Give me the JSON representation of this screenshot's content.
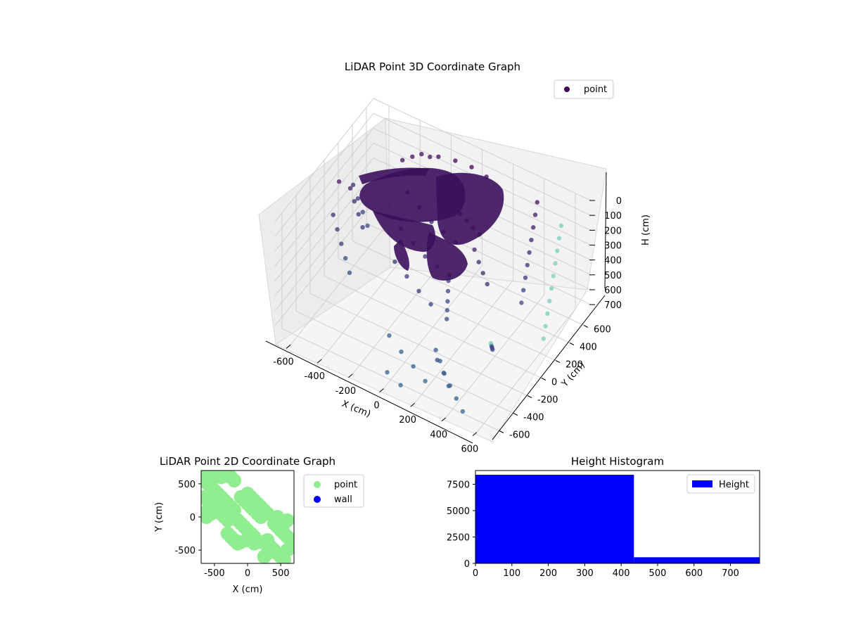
{
  "chart_data": [
    {
      "type": "scatter",
      "projection": "3d",
      "title": "LiDAR Point 3D Coordinate Graph",
      "xlabel": "X (cm)",
      "ylabel": "Y (cm)",
      "zlabel": "H (cm)",
      "xlim": [
        -700,
        700
      ],
      "ylim": [
        -700,
        700
      ],
      "zlim": [
        0,
        780
      ],
      "zaxis_inverted": true,
      "x_ticks": [
        "-600",
        "-400",
        "-200",
        "0",
        "200",
        "400",
        "600"
      ],
      "y_ticks": [
        "-600",
        "-400",
        "-200",
        "0",
        "200",
        "400",
        "600"
      ],
      "z_ticks": [
        "0",
        "100",
        "200",
        "300",
        "400",
        "500",
        "600",
        "700"
      ],
      "legend": {
        "entries": [
          "point"
        ],
        "placement": "top-right"
      },
      "colormap": "viridis (by height)",
      "grid": true,
      "series": [
        {
          "name": "point",
          "note_points": "approximate sample of the dense cloud",
          "points": [
            [
              -650,
              100,
              180
            ],
            [
              -600,
              150,
              230
            ],
            [
              -560,
              120,
              280
            ],
            [
              -520,
              90,
              330
            ],
            [
              -480,
              60,
              380
            ],
            [
              -620,
              -50,
              300
            ],
            [
              -580,
              -80,
              360
            ],
            [
              -540,
              -110,
              420
            ],
            [
              -500,
              -140,
              480
            ],
            [
              -460,
              -170,
              540
            ],
            [
              -650,
              300,
              320
            ],
            [
              -610,
              280,
              380
            ],
            [
              -570,
              260,
              440
            ],
            [
              -530,
              240,
              500
            ],
            [
              -300,
              500,
              60
            ],
            [
              -200,
              520,
              40
            ],
            [
              -100,
              540,
              30
            ],
            [
              0,
              550,
              30
            ],
            [
              100,
              540,
              40
            ],
            [
              -400,
              450,
              120
            ],
            [
              -350,
              480,
              90
            ],
            [
              -250,
              510,
              60
            ],
            [
              -300,
              300,
              200
            ],
            [
              -200,
              250,
              220
            ],
            [
              -100,
              200,
              240
            ],
            [
              0,
              150,
              230
            ],
            [
              100,
              100,
              220
            ],
            [
              -250,
              100,
              300
            ],
            [
              -150,
              50,
              320
            ],
            [
              -50,
              0,
              330
            ],
            [
              50,
              -50,
              320
            ],
            [
              150,
              -100,
              300
            ],
            [
              -200,
              -100,
              380
            ],
            [
              -100,
              -150,
              400
            ],
            [
              0,
              -200,
              420
            ],
            [
              100,
              -250,
              430
            ],
            [
              0,
              300,
              150
            ],
            [
              50,
              280,
              160
            ],
            [
              100,
              260,
              170
            ],
            [
              150,
              240,
              180
            ],
            [
              200,
              220,
              190
            ],
            [
              100,
              0,
              420
            ],
            [
              120,
              -50,
              450
            ],
            [
              140,
              -100,
              480
            ],
            [
              160,
              -150,
              500
            ],
            [
              180,
              -200,
              520
            ],
            [
              200,
              150,
              250
            ],
            [
              250,
              100,
              280
            ],
            [
              300,
              50,
              300
            ],
            [
              350,
              0,
              320
            ],
            [
              600,
              -500,
              300
            ],
            [
              580,
              -450,
              350
            ],
            [
              560,
              -400,
              400
            ],
            [
              540,
              -350,
              450
            ],
            [
              520,
              -300,
              500
            ],
            [
              600,
              500,
              100
            ],
            [
              610,
              450,
              150
            ],
            [
              620,
              400,
              200
            ],
            [
              630,
              350,
              250
            ],
            [
              640,
              300,
              300
            ],
            [
              650,
              250,
              350
            ],
            [
              660,
              200,
              400
            ],
            [
              670,
              150,
              450
            ],
            [
              680,
              100,
              500
            ],
            [
              690,
              50,
              550
            ],
            [
              400,
              600,
              100
            ],
            [
              410,
              550,
              150
            ],
            [
              420,
              500,
              200
            ],
            [
              430,
              450,
              250
            ],
            [
              440,
              400,
              300
            ],
            [
              450,
              350,
              350
            ],
            [
              460,
              300,
              400
            ],
            [
              470,
              250,
              450
            ],
            [
              480,
              200,
              500
            ],
            [
              300,
              -600,
              500
            ],
            [
              350,
              -620,
              550
            ],
            [
              400,
              -640,
              600
            ],
            [
              450,
              -660,
              650
            ],
            [
              500,
              -680,
              700
            ],
            [
              200,
              -400,
              600
            ],
            [
              250,
              -450,
              620
            ],
            [
              300,
              -500,
              650
            ],
            [
              350,
              -550,
              680
            ],
            [
              -100,
              -400,
              650
            ],
            [
              0,
              -450,
              680
            ],
            [
              100,
              -500,
              700
            ],
            [
              200,
              -550,
              720
            ],
            [
              0,
              -650,
              700
            ],
            [
              100,
              -680,
              720
            ]
          ]
        }
      ]
    },
    {
      "type": "scatter",
      "title": "LiDAR Point 2D Coordinate Graph",
      "xlabel": "X (cm)",
      "ylabel": "Y (cm)",
      "xlim": [
        -700,
        700
      ],
      "ylim": [
        -700,
        700
      ],
      "x_ticks": [
        "-500",
        "0",
        "500"
      ],
      "y_ticks": [
        "-500",
        "0",
        "500"
      ],
      "legend": {
        "entries": [
          "point",
          "wall"
        ],
        "placement": "outside-right"
      },
      "grid": false,
      "series": [
        {
          "name": "point",
          "color": "#90ee90",
          "note_points": "approximate sample of the dense cloud",
          "points": [
            [
              -650,
              650
            ],
            [
              -600,
              620
            ],
            [
              -550,
              650
            ],
            [
              -500,
              600
            ],
            [
              -450,
              650
            ],
            [
              -400,
              600
            ],
            [
              -350,
              650
            ],
            [
              -300,
              620
            ],
            [
              -250,
              600
            ],
            [
              -200,
              550
            ],
            [
              -600,
              500
            ],
            [
              -550,
              450
            ],
            [
              -500,
              400
            ],
            [
              -450,
              350
            ],
            [
              -400,
              300
            ],
            [
              -350,
              250
            ],
            [
              -300,
              200
            ],
            [
              -250,
              150
            ],
            [
              -200,
              100
            ],
            [
              -650,
              300
            ],
            [
              -600,
              250
            ],
            [
              -550,
              200
            ],
            [
              -500,
              150
            ],
            [
              -450,
              100
            ],
            [
              -400,
              50
            ],
            [
              -350,
              0
            ],
            [
              -300,
              -50
            ],
            [
              -650,
              50
            ],
            [
              -620,
              0
            ],
            [
              -600,
              100
            ],
            [
              -550,
              50
            ],
            [
              0,
              350
            ],
            [
              50,
              300
            ],
            [
              100,
              250
            ],
            [
              150,
              200
            ],
            [
              200,
              150
            ],
            [
              250,
              100
            ],
            [
              300,
              50
            ],
            [
              -100,
              300
            ],
            [
              -50,
              250
            ],
            [
              0,
              200
            ],
            [
              50,
              150
            ],
            [
              100,
              100
            ],
            [
              150,
              50
            ],
            [
              200,
              0
            ],
            [
              -200,
              0
            ],
            [
              -150,
              -50
            ],
            [
              -100,
              -100
            ],
            [
              -50,
              -150
            ],
            [
              0,
              -200
            ],
            [
              50,
              -250
            ],
            [
              100,
              -300
            ],
            [
              -300,
              -250
            ],
            [
              -250,
              -300
            ],
            [
              -200,
              -350
            ],
            [
              -150,
              -400
            ],
            [
              -100,
              -380
            ],
            [
              0,
              -350
            ],
            [
              100,
              -400
            ],
            [
              200,
              -380
            ],
            [
              300,
              -350
            ],
            [
              400,
              -100
            ],
            [
              450,
              -150
            ],
            [
              500,
              -200
            ],
            [
              550,
              -250
            ],
            [
              600,
              -300
            ],
            [
              650,
              -350
            ],
            [
              350,
              -450
            ],
            [
              400,
              -500
            ],
            [
              450,
              -550
            ],
            [
              500,
              -600
            ],
            [
              550,
              -650
            ],
            [
              300,
              -550
            ],
            [
              250,
              -600
            ],
            [
              550,
              -100
            ],
            [
              600,
              -50
            ],
            [
              500,
              -50
            ],
            [
              450,
              0
            ],
            [
              600,
              -500
            ],
            [
              650,
              -450
            ]
          ]
        },
        {
          "name": "wall",
          "color": "#0000ff",
          "points": []
        }
      ]
    },
    {
      "type": "bar",
      "subtype": "histogram",
      "title": "Height Histogram",
      "xlabel": "",
      "ylabel": "",
      "xlim": [
        0,
        780
      ],
      "ylim": [
        0,
        8800
      ],
      "x_ticks": [
        "0",
        "100",
        "200",
        "300",
        "400",
        "500",
        "600",
        "700"
      ],
      "y_ticks": [
        "0",
        "2500",
        "5000",
        "7500"
      ],
      "legend": {
        "entries": [
          "Height"
        ],
        "placement": "top-right"
      },
      "grid": false,
      "series": [
        {
          "name": "Height",
          "color": "#0000ff",
          "bins": [
            {
              "from": 0,
              "to": 435,
              "count": 8400
            },
            {
              "from": 435,
              "to": 780,
              "count": 580
            }
          ]
        }
      ]
    }
  ]
}
